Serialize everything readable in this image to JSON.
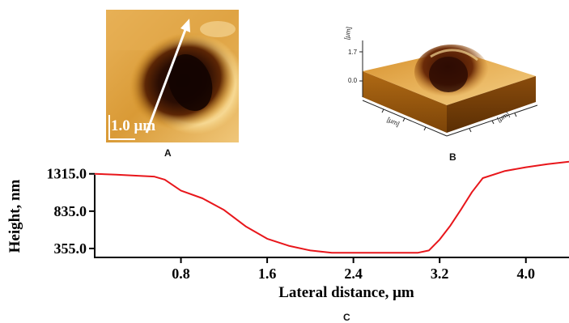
{
  "panel_a": {
    "label": "A",
    "scale_text": "1.0 μm",
    "colors": {
      "light": "#f6d68a",
      "mid": "#d9951f",
      "dark": "#2a0d03"
    }
  },
  "panel_b": {
    "label": "B",
    "axis_texts": {
      "z_unit": "[μm]",
      "z_top": "1.7",
      "z_zero": "0.0",
      "x_unit": "[μm]",
      "y_unit": "[μm]"
    }
  },
  "panel_c": {
    "label": "C"
  },
  "chart_data": {
    "type": "line",
    "xlabel": "Lateral distance, μm",
    "ylabel": "Height, nm",
    "xticks": [
      0.8,
      1.6,
      2.4,
      3.2,
      4.0
    ],
    "xtick_labels": [
      "0.8",
      "1.6",
      "2.4",
      "3.2",
      "4.0"
    ],
    "yticks": [
      355.0,
      835.0,
      1315.0
    ],
    "ytick_labels": [
      "355.0",
      "835.0",
      "1315.0"
    ],
    "xlim": [
      0.0,
      4.4
    ],
    "ylim": [
      240,
      1510
    ],
    "grid": false,
    "series": [
      {
        "color": "#e8161b",
        "x": [
          0.0,
          0.2,
          0.4,
          0.55,
          0.65,
          0.8,
          1.0,
          1.2,
          1.4,
          1.6,
          1.8,
          2.0,
          2.2,
          2.4,
          2.6,
          2.8,
          3.0,
          3.1,
          3.2,
          3.3,
          3.4,
          3.5,
          3.6,
          3.8,
          4.0,
          4.2,
          4.4
        ],
        "y": [
          1315,
          1305,
          1290,
          1280,
          1240,
          1100,
          1000,
          850,
          640,
          480,
          390,
          330,
          300,
          300,
          300,
          300,
          300,
          330,
          470,
          650,
          860,
          1080,
          1260,
          1350,
          1400,
          1440,
          1470
        ]
      }
    ]
  }
}
